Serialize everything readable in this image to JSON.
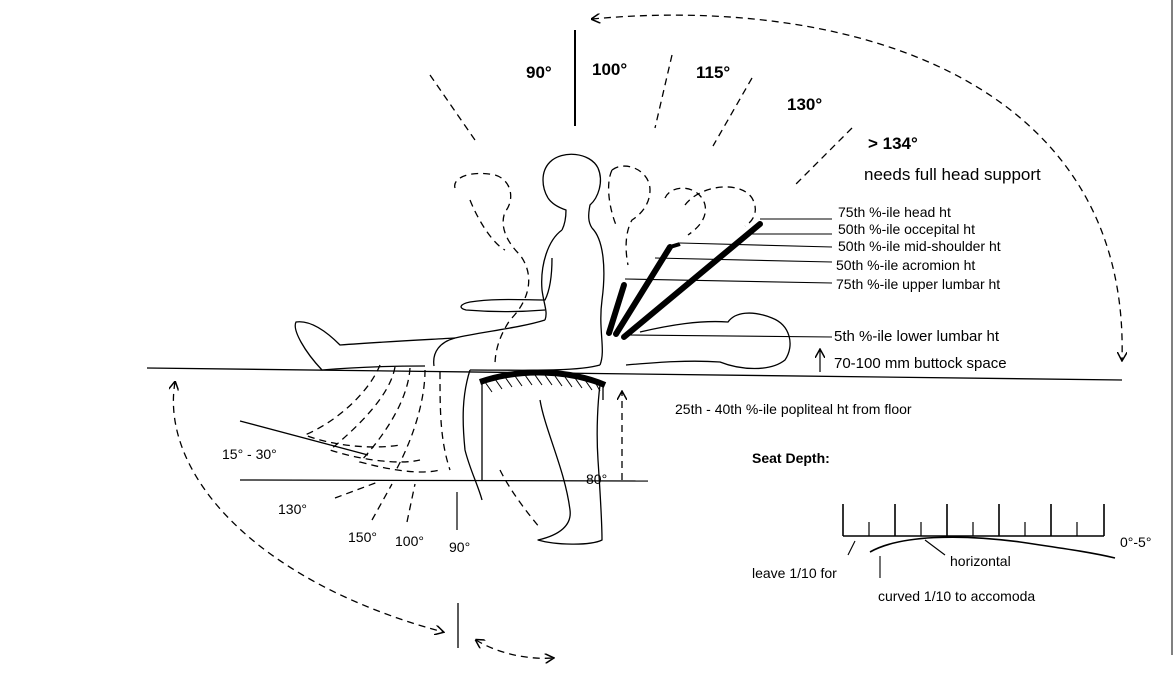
{
  "recline_angles": {
    "a90": "90°",
    "a100": "100°",
    "a115": "115°",
    "a130": "130°",
    "a134": "> 134°",
    "head_support": "needs full head support"
  },
  "height_labels": {
    "head": "75th %-ile head ht",
    "occipital": "50th %-ile occepital ht",
    "mid_shoulder": "50th %-ile mid-shoulder ht",
    "acromion": "50th %-ile acromion ht",
    "upper_lumbar": "75th %-ile upper lumbar ht",
    "lower_lumbar": "5th %-ile lower lumbar ht",
    "buttock_space": "70-100 mm buttock space"
  },
  "popliteal": "25th - 40th %-ile popliteal ht from floor",
  "leg_angles": {
    "a15_30": "15° - 30°",
    "a130": "130°",
    "a150": "150°",
    "a100": "100°",
    "a90": "90°",
    "a80": "80°"
  },
  "seat_depth": {
    "title": "Seat Depth:",
    "angle": "0°-5°",
    "horizontal": "horizontal",
    "leave": "leave 1/10 for",
    "curved": "curved 1/10 to accomoda"
  }
}
